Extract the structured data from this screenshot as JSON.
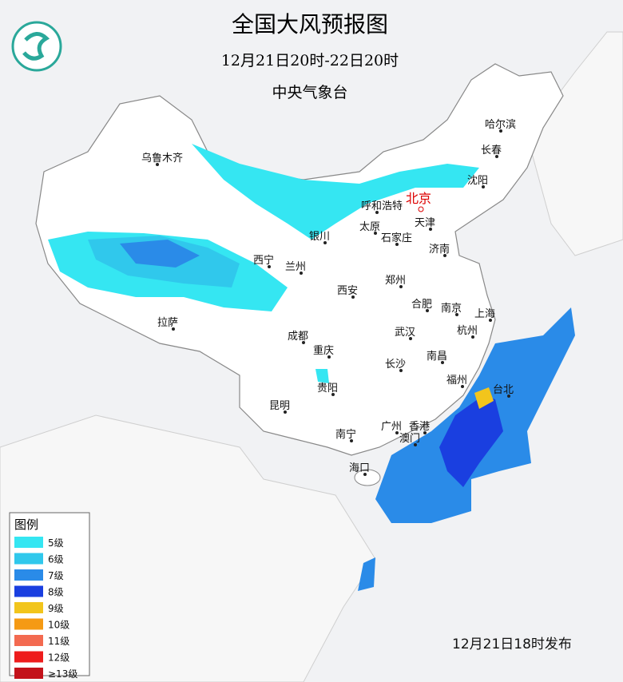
{
  "header": {
    "title": "全国大风预报图",
    "period": "12月21日20时-22日20时",
    "agency": "中央气象台"
  },
  "capital": "北京",
  "cities": [
    "乌鲁木齐",
    "哈尔滨",
    "长春",
    "沈阳",
    "天津",
    "呼和浩特",
    "太原",
    "石家庄",
    "银川",
    "济南",
    "西宁",
    "兰州",
    "郑州",
    "西安",
    "合肥",
    "南京",
    "上海",
    "拉萨",
    "成都",
    "武汉",
    "杭州",
    "重庆",
    "南昌",
    "长沙",
    "福州",
    "台北",
    "贵阳",
    "昆明",
    "广州",
    "香港",
    "澳门",
    "南宁",
    "海口"
  ],
  "legend": {
    "title": "图例",
    "items": [
      {
        "label": "5级",
        "color": "#35e6f2"
      },
      {
        "label": "6级",
        "color": "#30c8ec"
      },
      {
        "label": "7级",
        "color": "#2a8be8"
      },
      {
        "label": "8级",
        "color": "#1a3fe0"
      },
      {
        "label": "9级",
        "color": "#f2c51c"
      },
      {
        "label": "10级",
        "color": "#f59a14"
      },
      {
        "label": "11级",
        "color": "#f36a50"
      },
      {
        "label": "12级",
        "color": "#ee1c1c"
      },
      {
        "label": "≥13级",
        "color": "#c3121a"
      }
    ]
  },
  "issued": "12月21日18时发布"
}
